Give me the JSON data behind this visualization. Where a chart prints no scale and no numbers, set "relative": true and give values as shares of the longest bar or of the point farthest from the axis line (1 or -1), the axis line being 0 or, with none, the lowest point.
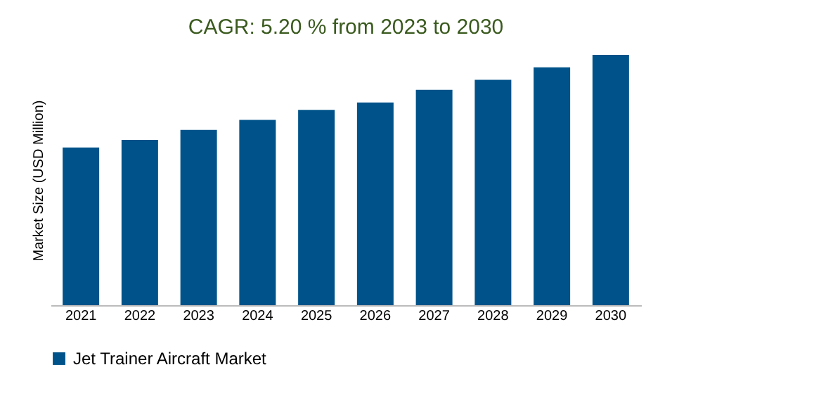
{
  "chart_data": {
    "type": "bar",
    "title": "CAGR: 5.20 % from 2023 to 2030",
    "ylabel": "Market Size (USD Million)",
    "relative": true,
    "categories": [
      "2021",
      "2022",
      "2023",
      "2024",
      "2025",
      "2026",
      "2027",
      "2028",
      "2029",
      "2030"
    ],
    "series": [
      {
        "name": "Jet Trainer Aircraft Market",
        "color": "#00538a",
        "values": [
          0.63,
          0.66,
          0.7,
          0.74,
          0.78,
          0.81,
          0.86,
          0.9,
          0.95,
          1
        ]
      }
    ],
    "legend": "bottom",
    "grid": false
  }
}
